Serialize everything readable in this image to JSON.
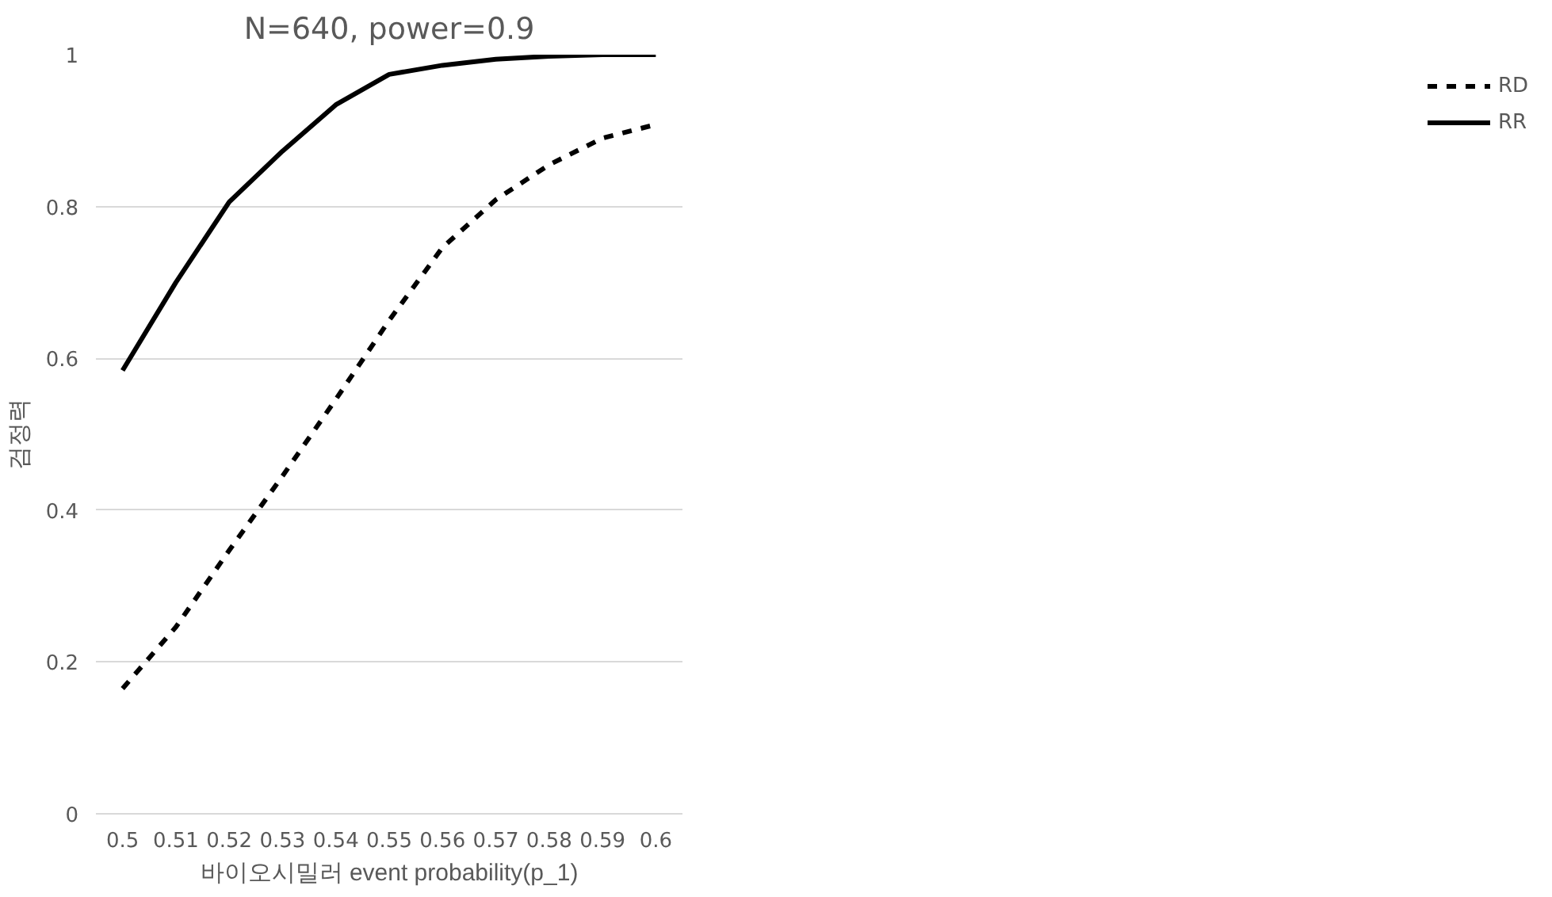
{
  "chart_data": {
    "type": "line",
    "title": "N=640, power=0.9",
    "xlabel": "바이오시밀러 event probability(p_1)",
    "ylabel": "검정력",
    "categories": [
      "0.5",
      "0.51",
      "0.52",
      "0.53",
      "0.54",
      "0.55",
      "0.56",
      "0.57",
      "0.58",
      "0.59",
      "0.6"
    ],
    "series": [
      {
        "name": "RD",
        "color": "#000000",
        "line_style": "dashed",
        "values": [
          0.165,
          0.246,
          0.347,
          0.445,
          0.546,
          0.65,
          0.746,
          0.809,
          0.855,
          0.89,
          0.908
        ]
      },
      {
        "name": "RR",
        "color": "#000000",
        "line_style": "solid",
        "values": [
          0.584,
          0.7,
          0.806,
          0.873,
          0.934,
          0.974,
          0.986,
          0.994,
          0.998,
          1.0,
          1.0
        ]
      }
    ],
    "ylim": [
      0,
      1
    ],
    "yticks": [
      0,
      0.2,
      0.4,
      0.6,
      0.8,
      1
    ],
    "grid": "y",
    "legend": "right",
    "marker": "none"
  }
}
